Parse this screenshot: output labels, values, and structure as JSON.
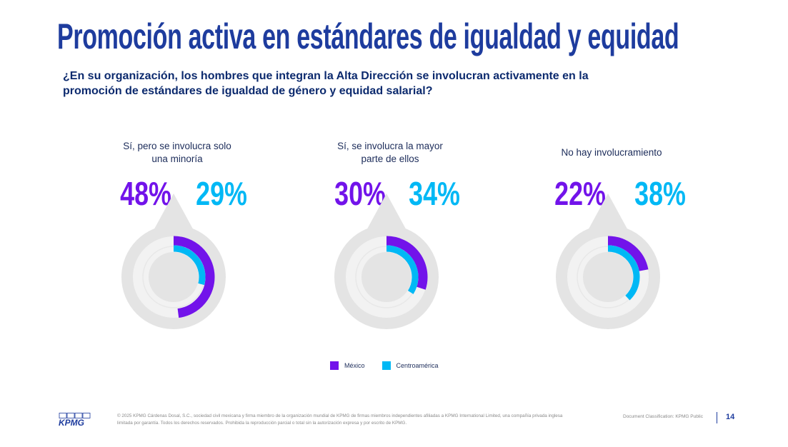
{
  "title": "Promoción activa en estándares de igualdad y equidad",
  "question": "¿En su organización, los hombres que integran la Alta Dirección se involucran activamente en la promoción de estándares de igualdad de género y equidad salarial?",
  "colors": {
    "mexico": "#7213ea",
    "centroamerica": "#00b8f5",
    "title": "#1e3c9e"
  },
  "chart_data": {
    "type": "donut",
    "series_names": [
      "México",
      "Centroamérica"
    ],
    "categories": [
      "Sí, pero se involucra solo una minoría",
      "Sí, se involucra la mayor parte de ellos",
      "No hay involucramiento"
    ],
    "series": [
      {
        "name": "México",
        "values": [
          48,
          30,
          22
        ]
      },
      {
        "name": "Centroamérica",
        "values": [
          29,
          34,
          38
        ]
      }
    ]
  },
  "panels": [
    {
      "category": "Sí, pero se involucra solo una minoría",
      "mexico_label": "48%",
      "centroamerica_label": "29%"
    },
    {
      "category": "Sí, se involucra la mayor parte de ellos",
      "mexico_label": "30%",
      "centroamerica_label": "34%"
    },
    {
      "category": "No hay involucramiento",
      "mexico_label": "22%",
      "centroamerica_label": "38%"
    }
  ],
  "legend": {
    "mexico": "México",
    "centroamerica": "Centroamérica"
  },
  "footer": {
    "logo": "KPMG",
    "copyright": "© 2025 KPMG Cárdenas Dosal, S.C., sociedad civil mexicana y firma miembro de la organización mundial de KPMG de firmas miembros independientes afiliadas a KPMG International Limited, una compañía privada inglesa limitada por garantía. Todos los derechos reservados. Prohibida la reproducción parcial o total sin la autorización expresa y por escrito de KPMG.",
    "classification": "Document Classification: KPMG Public",
    "page": "14"
  }
}
